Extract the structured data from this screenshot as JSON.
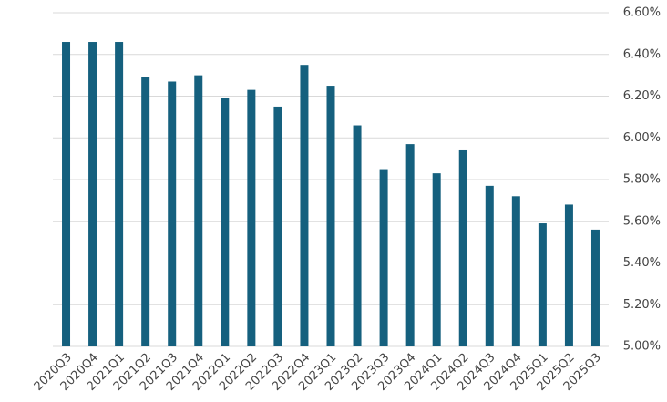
{
  "chart_data": {
    "type": "bar",
    "categories": [
      "2020Q3",
      "2020Q4",
      "2021Q1",
      "2021Q2",
      "2021Q3",
      "2021Q4",
      "2022Q1",
      "2022Q2",
      "2022Q3",
      "2022Q4",
      "2023Q1",
      "2023Q2",
      "2023Q3",
      "2023Q4",
      "2024Q1",
      "2024Q2",
      "2024Q3",
      "2024Q4",
      "2025Q1",
      "2025Q2",
      "2025Q3"
    ],
    "values": [
      6.46,
      6.46,
      6.46,
      6.29,
      6.27,
      6.3,
      6.19,
      6.23,
      6.15,
      6.35,
      6.25,
      6.06,
      5.85,
      5.97,
      5.83,
      5.94,
      5.77,
      5.72,
      5.59,
      5.68,
      5.56
    ],
    "color": "#15607e",
    "ylim": [
      5.0,
      6.6
    ],
    "yticks": [
      {
        "value": 5.0,
        "label": "5.00%"
      },
      {
        "value": 5.2,
        "label": "5.20%"
      },
      {
        "value": 5.4,
        "label": "5.40%"
      },
      {
        "value": 5.6,
        "label": "5.60%"
      },
      {
        "value": 5.8,
        "label": "5.80%"
      },
      {
        "value": 6.0,
        "label": "6.00%"
      },
      {
        "value": 6.2,
        "label": "6.20%"
      },
      {
        "value": 6.4,
        "label": "6.40%"
      },
      {
        "value": 6.6,
        "label": "6.60%"
      }
    ],
    "grid": true
  }
}
